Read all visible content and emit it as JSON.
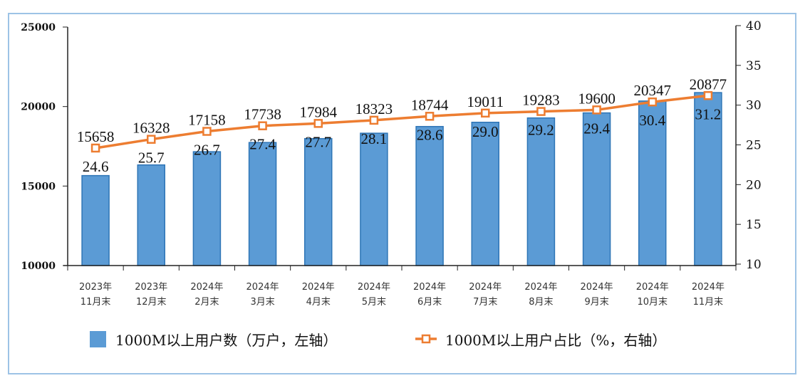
{
  "chart_data": {
    "type": "bar+line",
    "categories": [
      [
        "2023年",
        "11月末"
      ],
      [
        "2023年",
        "12月末"
      ],
      [
        "2024年",
        "2月末"
      ],
      [
        "2024年",
        "3月末"
      ],
      [
        "2024年",
        "4月末"
      ],
      [
        "2024年",
        "5月末"
      ],
      [
        "2024年",
        "6月末"
      ],
      [
        "2024年",
        "7月末"
      ],
      [
        "2024年",
        "8月末"
      ],
      [
        "2024年",
        "9月末"
      ],
      [
        "2024年",
        "10月末"
      ],
      [
        "2024年",
        "11月末"
      ]
    ],
    "series": [
      {
        "name": "1000M以上用户数（万户，左轴）",
        "type": "bar",
        "axis": "left",
        "color": "#5B9BD5",
        "values": [
          15658,
          16328,
          17158,
          17738,
          17984,
          18323,
          18744,
          19011,
          19283,
          19600,
          20347,
          20877
        ]
      },
      {
        "name": "1000M以上用户占比（%，右轴）",
        "type": "line",
        "axis": "right",
        "color": "#ED7D31",
        "values": [
          24.6,
          25.7,
          26.7,
          27.4,
          27.7,
          28.1,
          28.6,
          29.0,
          29.2,
          29.4,
          30.4,
          31.2
        ]
      }
    ],
    "left_axis": {
      "ylim": [
        10000,
        25000
      ],
      "ticks": [
        "10000",
        "15000",
        "20000",
        "25000"
      ]
    },
    "right_axis": {
      "ylim": [
        10,
        40
      ],
      "ticks": [
        "10",
        "15",
        "20",
        "25",
        "30",
        "35",
        "40"
      ]
    },
    "percent_labels": [
      "24.6",
      "25.7",
      "26.7",
      "27.4",
      "27.7",
      "28.1",
      "28.6",
      "29.0",
      "29.2",
      "29.4",
      "30.4",
      "31.2"
    ],
    "legend_position": "bottom",
    "grid": false
  }
}
